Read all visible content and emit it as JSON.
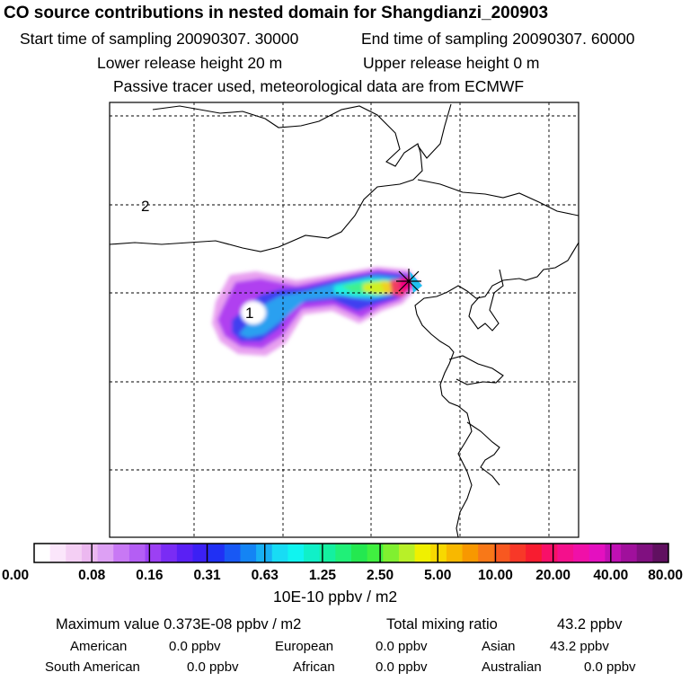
{
  "title": "CO  source contributions in nested domain for Shangdianzi_200903",
  "header": {
    "start_time": "Start time of sampling 20090307. 30000",
    "end_time": "End time of sampling 20090307. 60000",
    "lower_height": "Lower release height   20 m",
    "upper_height": "Upper release height    0 m",
    "note": "Passive tracer used, meteorological data are from ECMWF"
  },
  "map": {
    "grid_labels": [
      "2",
      "1"
    ],
    "receptor_icon": "star-cross-icon",
    "colors": {
      "frame": "#000000",
      "plume": [
        "#e8a0f0",
        "#b040f0",
        "#4040f0",
        "#2aa0f0",
        "#20f0e0",
        "#40f090",
        "#d0f020",
        "#f0d020",
        "#f04060",
        "#f00080"
      ]
    }
  },
  "colorbar": {
    "tick_labels": [
      "0.00",
      "0.08",
      "0.16",
      "0.31",
      "0.63",
      "1.25",
      "2.50",
      "5.00",
      "10.00",
      "20.00",
      "40.00",
      "80.00"
    ],
    "colors": [
      "#ffffff",
      "#fbe6fb",
      "#f4cff4",
      "#ecb8f0",
      "#dda0f4",
      "#c878f4",
      "#b45ef4",
      "#9c40f4",
      "#7a2cf4",
      "#5a20f4",
      "#3c20f4",
      "#2030f4",
      "#1858f4",
      "#1484f4",
      "#18b0f4",
      "#18dcf4",
      "#10f4f0",
      "#10f0c8",
      "#14f0a0",
      "#20f078",
      "#24e850",
      "#40f040",
      "#80f030",
      "#b8f028",
      "#f0f000",
      "#f8d800",
      "#f8b800",
      "#f89800",
      "#f87818",
      "#f85820",
      "#f83828",
      "#f81c30",
      "#f81068",
      "#f4108c",
      "#f010a8",
      "#e410c0",
      "#c010b4",
      "#a0109c",
      "#801080",
      "#601060"
    ],
    "unit_label": "10E-10 ppbv / m2"
  },
  "footer": {
    "max_value": "Maximum value  0.373E-08 ppbv / m2",
    "total": "Total mixing ratio",
    "total_value": "43.2 ppbv",
    "regions": [
      {
        "name": "American",
        "value": "0.0 ppbv"
      },
      {
        "name": "European",
        "value": "0.0 ppbv"
      },
      {
        "name": "Asian",
        "value": "43.2 ppbv"
      },
      {
        "name": "South American",
        "value": "0.0 ppbv"
      },
      {
        "name": "African",
        "value": "0.0 ppbv"
      },
      {
        "name": "Australian",
        "value": "0.0 ppbv"
      }
    ]
  }
}
